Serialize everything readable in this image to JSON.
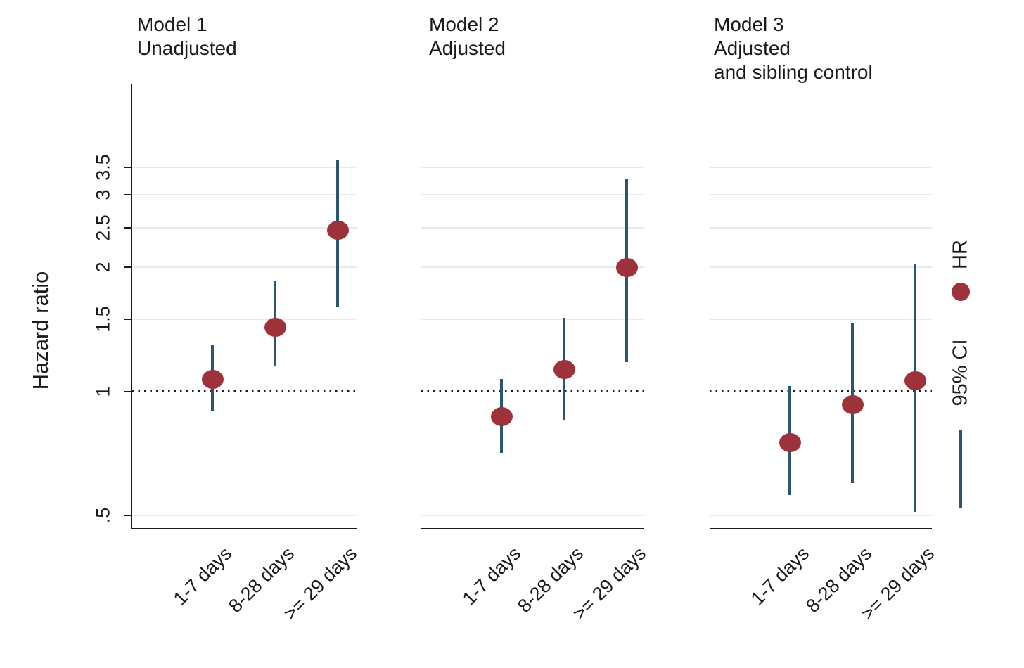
{
  "figure": {
    "background": "#ffffff",
    "y_axis_label": "Hazard ratio"
  },
  "chart_data": {
    "type": "scatter",
    "subtype": "forest-plot-dot-with-ci",
    "yscale": "log",
    "ylabel": "Hazard ratio",
    "ylim": [
      0.45,
      4.6
    ],
    "grid": "on",
    "reference_line": 1,
    "yticks": [
      {
        "label": ".5",
        "value": 0.5
      },
      {
        "label": "1",
        "value": 1
      },
      {
        "label": "1.5",
        "value": 1.5
      },
      {
        "label": "2",
        "value": 2
      },
      {
        "label": "2.5",
        "value": 2.5
      },
      {
        "label": "3",
        "value": 3
      },
      {
        "label": "3.5",
        "value": 3.5
      }
    ],
    "gridline_values": [
      0.5,
      1.5,
      2,
      2.5,
      3,
      3.5
    ],
    "categories": [
      "1-7 days",
      "8-28 days",
      ">= 29 days"
    ],
    "panels": [
      {
        "title_lines": [
          "Model 1",
          "Unadjusted",
          ""
        ],
        "points": [
          {
            "category": "1-7 days",
            "hr": 1.07,
            "ci_low": 0.9,
            "ci_high": 1.3
          },
          {
            "category": "8-28 days",
            "hr": 1.43,
            "ci_low": 1.15,
            "ci_high": 1.85
          },
          {
            "category": ">= 29 days",
            "hr": 2.46,
            "ci_low": 1.6,
            "ci_high": 3.64
          }
        ]
      },
      {
        "title_lines": [
          "Model 2",
          "Adjusted",
          ""
        ],
        "points": [
          {
            "category": "1-7 days",
            "hr": 0.87,
            "ci_low": 0.71,
            "ci_high": 1.07
          },
          {
            "category": "8-28 days",
            "hr": 1.13,
            "ci_low": 0.85,
            "ci_high": 1.51
          },
          {
            "category": ">= 29 days",
            "hr": 2.0,
            "ci_low": 1.18,
            "ci_high": 3.29
          }
        ]
      },
      {
        "title_lines": [
          "Model 3",
          "Adjusted",
          "and sibling control"
        ],
        "points": [
          {
            "category": "1-7 days",
            "hr": 0.75,
            "ci_low": 0.56,
            "ci_high": 1.03
          },
          {
            "category": "8-28 days",
            "hr": 0.93,
            "ci_low": 0.6,
            "ci_high": 1.46
          },
          {
            "category": ">= 29 days",
            "hr": 1.06,
            "ci_low": 0.51,
            "ci_high": 2.04
          }
        ]
      }
    ],
    "legend": {
      "position": "right",
      "items": [
        {
          "label": "HR",
          "marker": "dot"
        },
        {
          "label": "95% CI",
          "marker": "vertical-line"
        }
      ]
    },
    "colors": {
      "dot": "#9d323b",
      "ci_line": "#2b5570",
      "gridline": "#e1ebf3",
      "axis": "#1a1a1a",
      "reference_line": "#1a1a1a",
      "text": "#1a1a1a"
    }
  }
}
